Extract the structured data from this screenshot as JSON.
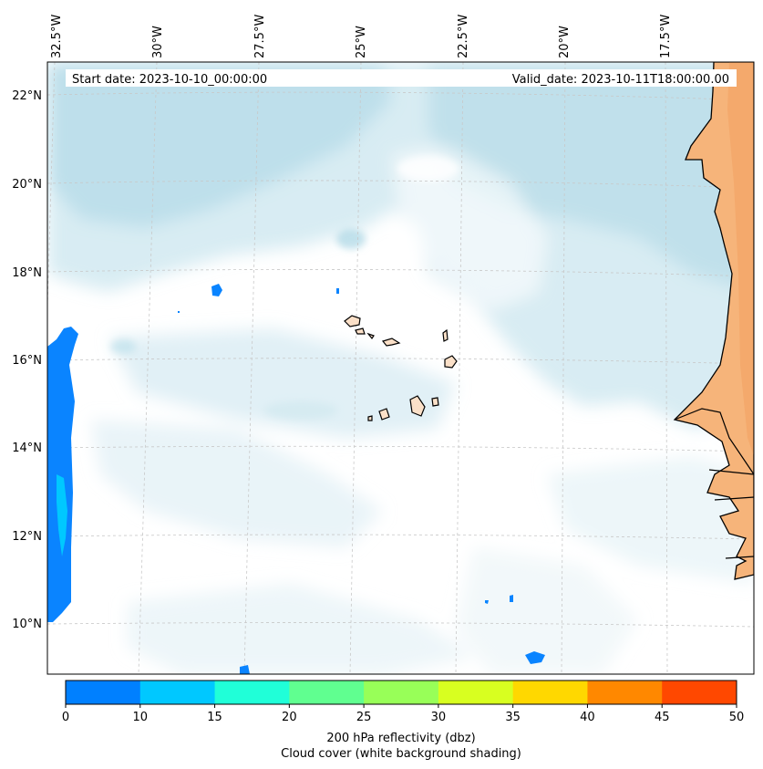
{
  "map": {
    "lon_labels": [
      "32.5°W",
      "30°W",
      "27.5°W",
      "25°W",
      "22.5°W",
      "20°W",
      "17.5°W"
    ],
    "lat_labels": [
      "22°N",
      "20°N",
      "18°N",
      "16°N",
      "14°N",
      "12°N",
      "10°N"
    ],
    "start_date": "Start date: 2023-10-10_00:00:00",
    "valid_date": "Valid_date: 2023-10-11T18:00:00.00"
  },
  "colorbar": {
    "ticks": [
      "0",
      "10",
      "15",
      "20",
      "25",
      "30",
      "35",
      "40",
      "45",
      "50"
    ],
    "colors": [
      "#0080ff",
      "#00c8ff",
      "#20ffd8",
      "#60ff90",
      "#98ff58",
      "#d8ff20",
      "#ffd800",
      "#ff8800",
      "#ff4800"
    ],
    "label": "200 hPa reflectivity (dbz)",
    "sublabel": "Cloud cover (white background shading)"
  },
  "colors": {
    "cloud": "#b8dde9",
    "land_fill": "#fbe0c8",
    "africa_fill": "#f6b47a",
    "reflectivity_low": "#0a84ff",
    "reflectivity_mid": "#00c8ff"
  }
}
